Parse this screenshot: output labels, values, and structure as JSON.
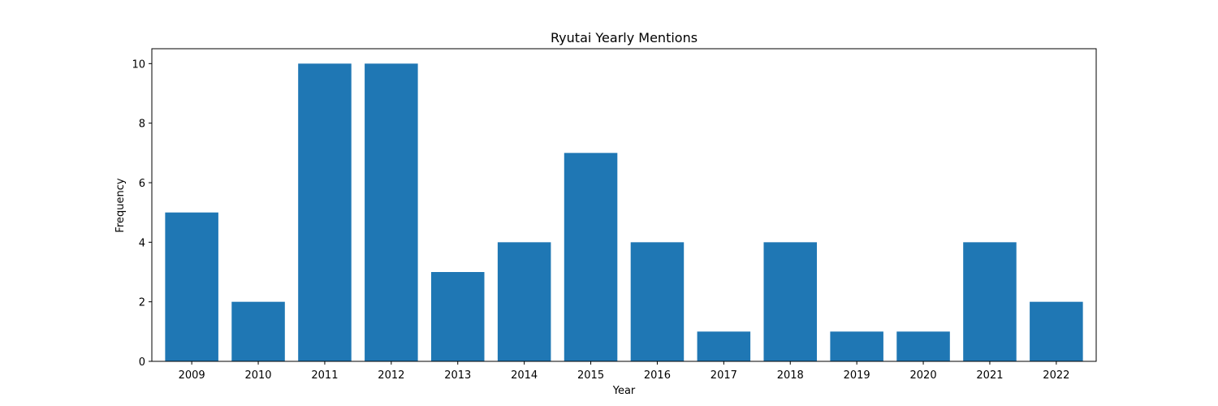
{
  "chart_data": {
    "type": "bar",
    "title": "Ryutai Yearly Mentions",
    "xlabel": "Year",
    "ylabel": "Frequency",
    "categories": [
      "2009",
      "2010",
      "2011",
      "2012",
      "2013",
      "2014",
      "2015",
      "2016",
      "2017",
      "2018",
      "2019",
      "2020",
      "2021",
      "2022"
    ],
    "values": [
      5,
      2,
      10,
      10,
      3,
      4,
      7,
      4,
      1,
      4,
      1,
      1,
      4,
      2
    ],
    "ylim": [
      0,
      10.5
    ],
    "yticks": [
      0,
      2,
      4,
      6,
      8,
      10
    ],
    "bar_color": "#1f77b4",
    "grid": false,
    "legend": "none"
  }
}
